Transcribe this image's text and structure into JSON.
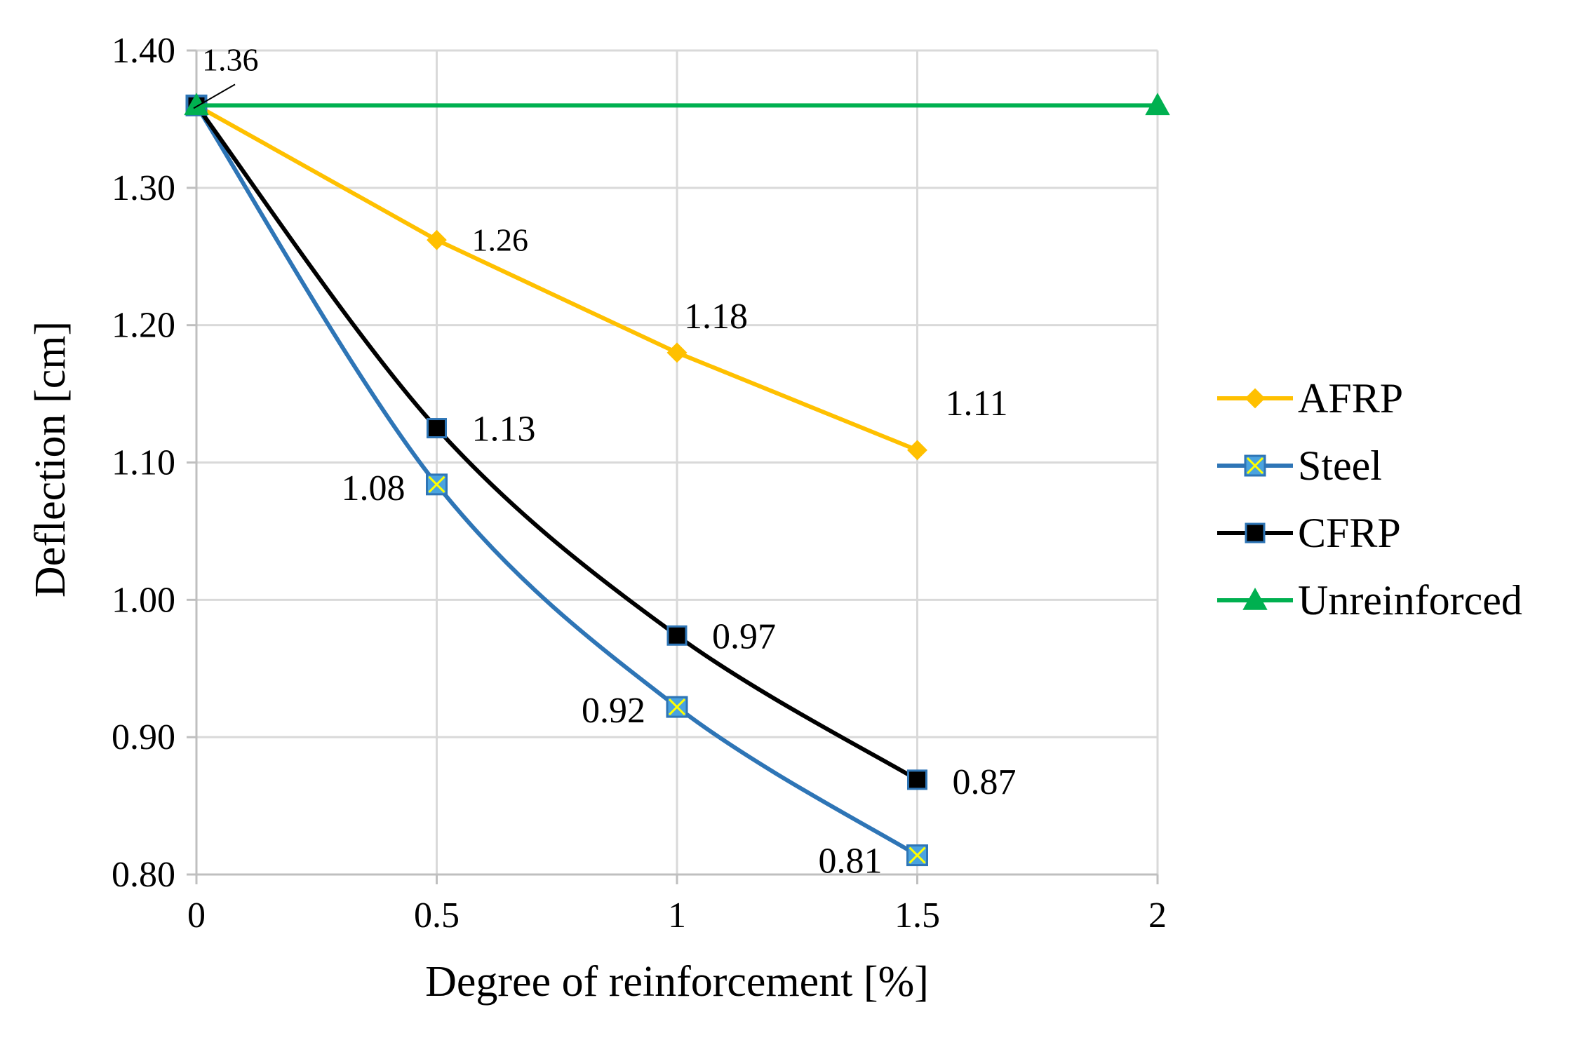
{
  "chart_data": {
    "type": "line",
    "title": "",
    "xlabel": "Degree of reinforcement [%]",
    "ylabel": "Deflection [cm]",
    "xlim": [
      0,
      2
    ],
    "ylim": [
      0.8,
      1.4
    ],
    "x_ticks": [
      0,
      0.5,
      1,
      1.5,
      2
    ],
    "x_tick_labels": [
      "0",
      "0.5",
      "1",
      "1.5",
      "2"
    ],
    "y_ticks": [
      0.8,
      0.9,
      1.0,
      1.1,
      1.2,
      1.3,
      1.4
    ],
    "y_tick_labels": [
      "0.80",
      "0.90",
      "1.00",
      "1.10",
      "1.20",
      "1.30",
      "1.40"
    ],
    "grid": true,
    "legend_position": "right",
    "series": [
      {
        "name": "AFRP",
        "color": "#ffc000",
        "marker": "diamond",
        "smooth": false,
        "x": [
          0,
          0.5,
          1,
          1.5
        ],
        "values": [
          1.36,
          1.262,
          1.18,
          1.109
        ],
        "labels": [
          "",
          "1.26",
          "1.18",
          "1.11"
        ]
      },
      {
        "name": "Steel",
        "color": "#2e75b6",
        "marker": "square-x",
        "smooth": true,
        "x": [
          0,
          0.5,
          1,
          1.5
        ],
        "values": [
          1.36,
          1.084,
          0.922,
          0.814
        ],
        "labels": [
          "",
          "1.08",
          "0.92",
          "0.81"
        ]
      },
      {
        "name": "CFRP",
        "color": "#000000",
        "marker": "square",
        "smooth": true,
        "x": [
          0,
          0.5,
          1,
          1.5
        ],
        "values": [
          1.36,
          1.125,
          0.974,
          0.869
        ],
        "labels": [
          "",
          "1.13",
          "0.97",
          "0.87"
        ]
      },
      {
        "name": "Unreinforced",
        "color": "#00b050",
        "marker": "triangle",
        "smooth": false,
        "x": [
          0,
          2
        ],
        "values": [
          1.36,
          1.36
        ],
        "labels": [
          "1.36",
          ""
        ]
      }
    ]
  }
}
